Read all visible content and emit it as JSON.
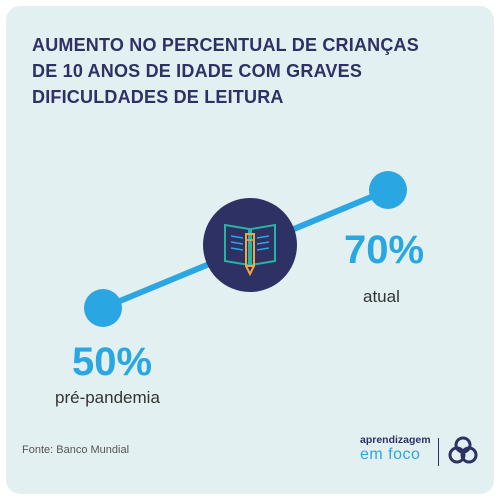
{
  "title_lines": [
    "AUMENTO NO PERCENTUAL DE CRIANÇAS",
    "DE 10 ANOS DE IDADE COM GRAVES",
    "DIFICULDADES DE LEITURA"
  ],
  "chart_data": {
    "type": "line",
    "unit": "%",
    "points": [
      {
        "label": "pré-pandemia",
        "value": 50,
        "display": "50%"
      },
      {
        "label": "atual",
        "value": 70,
        "display": "70%"
      }
    ]
  },
  "source": "Fonte: Banco Mundial",
  "logo": {
    "line1": "aprendizagem",
    "line2": "em foco"
  },
  "colors": {
    "accent": "#2aa7e2",
    "navy": "#2d3163",
    "background": "#e3f0f1",
    "icon_teal": "#27b3a0",
    "icon_orange": "#f2a541"
  },
  "icons": {
    "center": "book-with-pencil-icon",
    "logo": "knot-emblem-icon"
  }
}
